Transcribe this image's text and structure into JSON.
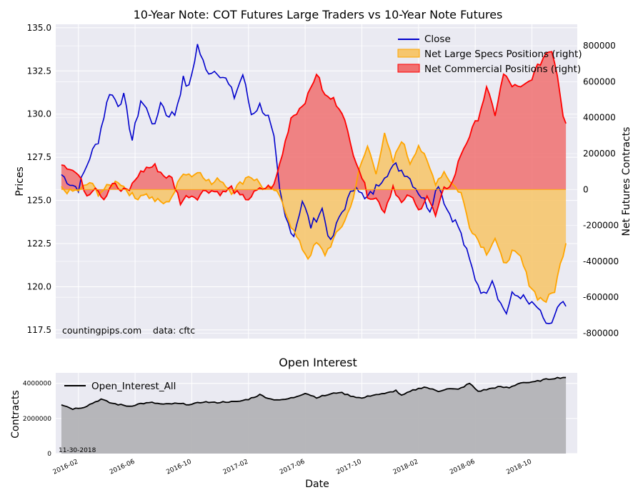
{
  "colors": {
    "plot_bg": "#eaeaf2",
    "grid": "#ffffff",
    "close": "#0000cc",
    "specs_fill": "#f6c66e",
    "specs_line": "#ffa500",
    "comm_fill": "#f07070",
    "comm_line": "#ff0000",
    "oi_fill": "#b3b3b6",
    "oi_line": "#000000"
  },
  "chart_data": [
    {
      "type": "line",
      "title": "10-Year Note: COT Futures Large Traders vs 10-Year Note Futures",
      "ylabel": "Prices",
      "y2label": "Net Futures Contracts",
      "ylim": [
        117.0,
        135.2
      ],
      "y2lim": [
        -830000,
        920000
      ],
      "xlim": [
        -2,
        182
      ],
      "yticks": [
        "117.5",
        "120.0",
        "122.5",
        "125.0",
        "127.5",
        "130.0",
        "132.5",
        "135.0"
      ],
      "ytick_values": [
        117.5,
        120.0,
        122.5,
        125.0,
        127.5,
        130.0,
        132.5,
        135.0
      ],
      "y2ticks": [
        "-800000",
        "-600000",
        "-400000",
        "-200000",
        "0",
        "200000",
        "400000",
        "600000",
        "800000"
      ],
      "y2tick_values": [
        -800000,
        -600000,
        -400000,
        -200000,
        0,
        200000,
        400000,
        600000,
        800000
      ],
      "legend_position": "upper right",
      "annotation": "countingpips.com    data: cftc",
      "series_names": [
        "Close",
        "Net Large Specs Positions (right)",
        "Net Commercial Positions (right)"
      ],
      "close_keyframes": [
        [
          0,
          126.5
        ],
        [
          3,
          126.0
        ],
        [
          6,
          125.7
        ],
        [
          10,
          127.5
        ],
        [
          13,
          128.5
        ],
        [
          17,
          131.3
        ],
        [
          20,
          130.6
        ],
        [
          22,
          131.0
        ],
        [
          25,
          128.5
        ],
        [
          28,
          130.8
        ],
        [
          31,
          130.0
        ],
        [
          33,
          129.2
        ],
        [
          35,
          130.8
        ],
        [
          37,
          130.0
        ],
        [
          40,
          130.0
        ],
        [
          43,
          132.0
        ],
        [
          45,
          131.5
        ],
        [
          48,
          134.0
        ],
        [
          51,
          132.5
        ],
        [
          55,
          132.5
        ],
        [
          58,
          132.0
        ],
        [
          61,
          131.0
        ],
        [
          64,
          132.3
        ],
        [
          67,
          130.0
        ],
        [
          70,
          130.5
        ],
        [
          73,
          129.8
        ],
        [
          75,
          128.5
        ],
        [
          77,
          125.5
        ],
        [
          79,
          124.0
        ],
        [
          82,
          123.0
        ],
        [
          85,
          125.0
        ],
        [
          88,
          123.5
        ],
        [
          92,
          124.5
        ],
        [
          95,
          122.5
        ],
        [
          98,
          124.0
        ],
        [
          101,
          125.0
        ],
        [
          104,
          126.0
        ],
        [
          107,
          125.0
        ],
        [
          110,
          125.5
        ],
        [
          114,
          126.5
        ],
        [
          118,
          127.0
        ],
        [
          122,
          126.5
        ],
        [
          126,
          125.5
        ],
        [
          130,
          124.5
        ],
        [
          133,
          126.0
        ],
        [
          136,
          124.5
        ],
        [
          140,
          123.5
        ],
        [
          143,
          122.0
        ],
        [
          146,
          120.5
        ],
        [
          149,
          119.5
        ],
        [
          152,
          120.5
        ],
        [
          155,
          119.0
        ],
        [
          157,
          118.5
        ],
        [
          159,
          119.5
        ],
        [
          162,
          119.5
        ],
        [
          165,
          119.0
        ],
        [
          168,
          118.8
        ],
        [
          170,
          118.0
        ],
        [
          173,
          117.8
        ],
        [
          176,
          119.0
        ],
        [
          178,
          118.8
        ]
      ],
      "specs_keyframes": [
        [
          0,
          5000
        ],
        [
          3,
          -15000
        ],
        [
          7,
          0
        ],
        [
          10,
          40000
        ],
        [
          13,
          -20000
        ],
        [
          17,
          20000
        ],
        [
          20,
          50000
        ],
        [
          23,
          0
        ],
        [
          26,
          -50000
        ],
        [
          29,
          -20000
        ],
        [
          33,
          -60000
        ],
        [
          37,
          -80000
        ],
        [
          40,
          -10000
        ],
        [
          43,
          100000
        ],
        [
          46,
          80000
        ],
        [
          49,
          100000
        ],
        [
          53,
          30000
        ],
        [
          56,
          60000
        ],
        [
          60,
          -10000
        ],
        [
          63,
          30000
        ],
        [
          66,
          80000
        ],
        [
          69,
          50000
        ],
        [
          72,
          0
        ],
        [
          75,
          0
        ],
        [
          78,
          -70000
        ],
        [
          81,
          -200000
        ],
        [
          84,
          -300000
        ],
        [
          87,
          -380000
        ],
        [
          90,
          -300000
        ],
        [
          93,
          -360000
        ],
        [
          96,
          -280000
        ],
        [
          99,
          -200000
        ],
        [
          102,
          -100000
        ],
        [
          105,
          100000
        ],
        [
          108,
          240000
        ],
        [
          111,
          100000
        ],
        [
          114,
          300000
        ],
        [
          117,
          150000
        ],
        [
          120,
          280000
        ],
        [
          123,
          150000
        ],
        [
          126,
          250000
        ],
        [
          129,
          150000
        ],
        [
          132,
          40000
        ],
        [
          135,
          100000
        ],
        [
          138,
          30000
        ],
        [
          141,
          -20000
        ],
        [
          144,
          -200000
        ],
        [
          147,
          -280000
        ],
        [
          150,
          -350000
        ],
        [
          153,
          -270000
        ],
        [
          156,
          -420000
        ],
        [
          159,
          -350000
        ],
        [
          162,
          -380000
        ],
        [
          165,
          -520000
        ],
        [
          168,
          -600000
        ],
        [
          171,
          -620000
        ],
        [
          174,
          -560000
        ],
        [
          176,
          -420000
        ],
        [
          178,
          -290000
        ]
      ],
      "comm_keyframes": [
        [
          0,
          150000
        ],
        [
          3,
          120000
        ],
        [
          6,
          80000
        ],
        [
          9,
          -30000
        ],
        [
          12,
          20000
        ],
        [
          15,
          -50000
        ],
        [
          18,
          40000
        ],
        [
          21,
          -10000
        ],
        [
          24,
          0
        ],
        [
          27,
          80000
        ],
        [
          30,
          120000
        ],
        [
          33,
          130000
        ],
        [
          36,
          80000
        ],
        [
          39,
          60000
        ],
        [
          42,
          -70000
        ],
        [
          45,
          -30000
        ],
        [
          48,
          -40000
        ],
        [
          51,
          0
        ],
        [
          54,
          -10000
        ],
        [
          57,
          -20000
        ],
        [
          60,
          10000
        ],
        [
          63,
          -40000
        ],
        [
          66,
          -50000
        ],
        [
          69,
          -10000
        ],
        [
          72,
          10000
        ],
        [
          75,
          20000
        ],
        [
          78,
          200000
        ],
        [
          81,
          400000
        ],
        [
          84,
          450000
        ],
        [
          87,
          520000
        ],
        [
          90,
          650000
        ],
        [
          93,
          520000
        ],
        [
          96,
          500000
        ],
        [
          99,
          440000
        ],
        [
          102,
          250000
        ],
        [
          105,
          120000
        ],
        [
          108,
          -30000
        ],
        [
          111,
          -50000
        ],
        [
          114,
          -120000
        ],
        [
          117,
          20000
        ],
        [
          120,
          -80000
        ],
        [
          123,
          -30000
        ],
        [
          126,
          -120000
        ],
        [
          129,
          -30000
        ],
        [
          132,
          -150000
        ],
        [
          135,
          0
        ],
        [
          138,
          40000
        ],
        [
          141,
          200000
        ],
        [
          144,
          300000
        ],
        [
          147,
          400000
        ],
        [
          150,
          560000
        ],
        [
          153,
          420000
        ],
        [
          156,
          640000
        ],
        [
          159,
          580000
        ],
        [
          162,
          560000
        ],
        [
          165,
          600000
        ],
        [
          168,
          680000
        ],
        [
          171,
          760000
        ],
        [
          173,
          780000
        ],
        [
          175,
          640000
        ],
        [
          177,
          420000
        ],
        [
          178,
          380000
        ]
      ]
    },
    {
      "type": "area",
      "title": "Open Interest",
      "xlabel": "Date",
      "ylabel": "Contracts",
      "ylim": [
        0,
        4600000
      ],
      "xlim": [
        -2,
        182
      ],
      "yticks": [
        "0",
        "2000000",
        "4000000"
      ],
      "ytick_values": [
        0,
        2000000,
        4000000
      ],
      "legend": "Open_Interest_All",
      "legend_position": "upper left",
      "date_note": "11-30-2018",
      "xticks": [
        "2016-02",
        "2016-06",
        "2016-10",
        "2017-02",
        "2017-06",
        "2017-10",
        "2018-02",
        "2018-06",
        "2018-10"
      ],
      "xtick_values": [
        6,
        26,
        46,
        66,
        86,
        106,
        126,
        146,
        166
      ],
      "keyframes": [
        [
          0,
          2800000
        ],
        [
          4,
          2550000
        ],
        [
          8,
          2650000
        ],
        [
          12,
          2950000
        ],
        [
          14,
          3100000
        ],
        [
          17,
          2900000
        ],
        [
          20,
          2800000
        ],
        [
          24,
          2700000
        ],
        [
          28,
          2850000
        ],
        [
          32,
          2900000
        ],
        [
          36,
          2800000
        ],
        [
          40,
          2850000
        ],
        [
          46,
          2800000
        ],
        [
          50,
          2950000
        ],
        [
          54,
          2900000
        ],
        [
          58,
          2950000
        ],
        [
          62,
          2950000
        ],
        [
          66,
          3100000
        ],
        [
          70,
          3350000
        ],
        [
          74,
          3100000
        ],
        [
          78,
          3050000
        ],
        [
          82,
          3200000
        ],
        [
          86,
          3450000
        ],
        [
          90,
          3200000
        ],
        [
          94,
          3350000
        ],
        [
          98,
          3500000
        ],
        [
          102,
          3300000
        ],
        [
          106,
          3150000
        ],
        [
          110,
          3350000
        ],
        [
          114,
          3400000
        ],
        [
          118,
          3600000
        ],
        [
          120,
          3300000
        ],
        [
          124,
          3600000
        ],
        [
          128,
          3800000
        ],
        [
          130,
          3700000
        ],
        [
          133,
          3550000
        ],
        [
          136,
          3700000
        ],
        [
          140,
          3650000
        ],
        [
          144,
          4000000
        ],
        [
          147,
          3550000
        ],
        [
          150,
          3650000
        ],
        [
          154,
          3800000
        ],
        [
          158,
          3750000
        ],
        [
          162,
          4050000
        ],
        [
          166,
          4050000
        ],
        [
          170,
          4200000
        ],
        [
          174,
          4300000
        ],
        [
          178,
          4350000
        ]
      ]
    }
  ]
}
